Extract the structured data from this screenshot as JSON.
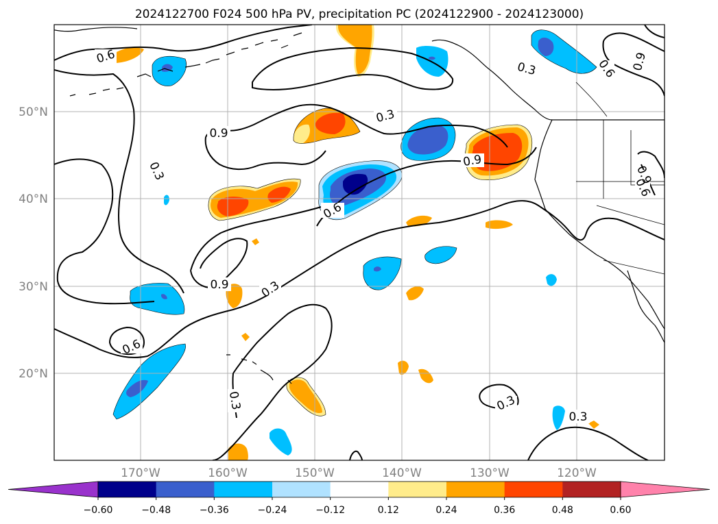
{
  "title": "2024122700 F024 500 hPa PV, precipitation PC (2024122900 - 2024123000)",
  "lat_ticks": [
    "20°N",
    "30°N",
    "40°N",
    "50°N"
  ],
  "lon_ticks": [
    "170°W",
    "160°W",
    "150°W",
    "140°W",
    "130°W",
    "120°W"
  ],
  "contour_labels": [
    "0.6",
    "0.3",
    "0.9",
    "0.3",
    "0.9",
    "0.6",
    "0.3",
    "0.9",
    "0.6",
    "0.3",
    "0.6",
    "0.9",
    "0.6",
    "0.9",
    "0.3",
    "0.3",
    "0.3"
  ],
  "colorbar": {
    "tick_labels": [
      "−0.60",
      "−0.48",
      "−0.36",
      "−0.24",
      "−0.12",
      "0.12",
      "0.24",
      "0.36",
      "0.48",
      "0.60"
    ],
    "colors": [
      "#9932cc",
      "#00008b",
      "#3a5fcd",
      "#00bfff",
      "#b0e2ff",
      "#ffffff",
      "#ffec8b",
      "#ffa500",
      "#ff4500",
      "#b22222",
      "#ff82ab"
    ]
  },
  "chart_data": {
    "type": "heatmap",
    "title": "2024122700 F024 500 hPa PV, precipitation PC (2024122900 - 2024123000)",
    "xlim": [
      -180,
      -110
    ],
    "ylim": [
      10,
      60
    ],
    "contour_levels": [
      0.3,
      0.6,
      0.9
    ],
    "color_levels": [
      -0.6,
      -0.48,
      -0.36,
      -0.24,
      -0.12,
      0.12,
      0.24,
      0.36,
      0.48,
      0.6
    ]
  }
}
